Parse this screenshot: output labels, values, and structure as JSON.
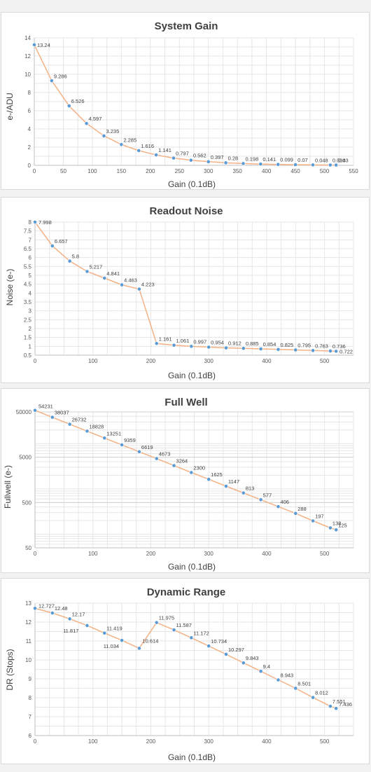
{
  "style": {
    "line_color": "#f4b183",
    "marker_color": "#5b9bd5",
    "grid_color": "#e6e6e6",
    "axis_color": "#bfbfbf"
  },
  "chart_data": [
    {
      "type": "line",
      "title": "System Gain",
      "xlabel": "Gain (0.1dB)",
      "ylabel": "e-/ADU",
      "xlim": [
        0,
        550
      ],
      "ylim": [
        0,
        14
      ],
      "xticks": [
        0,
        50,
        100,
        150,
        200,
        250,
        300,
        350,
        400,
        450,
        500,
        550
      ],
      "yticks": [
        0,
        2,
        4,
        6,
        8,
        10,
        12,
        14
      ],
      "yscale": "linear",
      "grid": true,
      "x": [
        0,
        30,
        60,
        90,
        120,
        150,
        180,
        210,
        240,
        270,
        300,
        330,
        360,
        390,
        420,
        450,
        480,
        510,
        520
      ],
      "values": [
        13.24,
        9.286,
        6.526,
        4.597,
        3.235,
        2.285,
        1.616,
        1.141,
        0.797,
        0.562,
        0.397,
        0.28,
        0.198,
        0.141,
        0.099,
        0.07,
        0.048,
        0.034,
        0.03
      ],
      "labels": [
        "13.24",
        "9.286",
        "6.526",
        "4.597",
        "3.235",
        "2.285",
        "1.616",
        "1.141",
        "0.797",
        "0.562",
        "0.397",
        "0.28",
        "0.198",
        "0.141",
        "0.099",
        "0.07",
        "0.048",
        "0.034",
        "0.03"
      ]
    },
    {
      "type": "line",
      "title": "Readout Noise",
      "xlabel": "Gain (0.1dB)",
      "ylabel": "Noise (e-)",
      "xlim": [
        0,
        550
      ],
      "ylim": [
        0.5,
        8
      ],
      "xticks": [
        0,
        100,
        200,
        300,
        400,
        500
      ],
      "yticks": [
        0.5,
        1,
        1.5,
        2,
        2.5,
        3,
        3.5,
        4,
        4.5,
        5,
        5.5,
        6,
        6.5,
        7,
        7.5,
        8
      ],
      "yscale": "linear",
      "grid": true,
      "x": [
        0,
        30,
        60,
        90,
        120,
        150,
        180,
        210,
        240,
        270,
        300,
        330,
        360,
        390,
        420,
        450,
        480,
        510,
        520
      ],
      "values": [
        7.998,
        6.657,
        5.8,
        5.217,
        4.841,
        4.463,
        4.223,
        1.161,
        1.061,
        0.997,
        0.954,
        0.912,
        0.885,
        0.854,
        0.825,
        0.795,
        0.763,
        0.736,
        0.722
      ],
      "labels": [
        "7.998",
        "6.657",
        "5.8",
        "5.217",
        "4.841",
        "4.463",
        "4.223",
        "1.161",
        "1.061",
        "0.997",
        "0.954",
        "0.912",
        "0.885",
        "0.854",
        "0.825",
        "0.795",
        "0.763",
        "0.736",
        "0.722"
      ]
    },
    {
      "type": "line",
      "title": "Full Well",
      "xlabel": "Gain (0.1dB)",
      "ylabel": "Fullwell (e-)",
      "xlim": [
        0,
        550
      ],
      "ylim": [
        50,
        50000
      ],
      "xticks": [
        0,
        100,
        200,
        300,
        400,
        500
      ],
      "yticks": [
        50000,
        5000,
        500,
        50
      ],
      "ytick_labels": [
        "50000",
        "5000",
        "500",
        "50"
      ],
      "yscale": "log",
      "grid": true,
      "x": [
        0,
        30,
        60,
        90,
        120,
        150,
        180,
        210,
        240,
        270,
        300,
        330,
        360,
        390,
        420,
        450,
        480,
        510,
        520
      ],
      "values": [
        54231,
        38037,
        26732,
        18828,
        13251,
        9359,
        6619,
        4673,
        3264,
        2300,
        1625,
        1147,
        813,
        577,
        406,
        288,
        197,
        138,
        125
      ],
      "labels": [
        "54231",
        "38037",
        "26732",
        "18828",
        "13251",
        "9359",
        "6619",
        "4673",
        "3264",
        "2300",
        "1625",
        "1147",
        "813",
        "577",
        "406",
        "288",
        "197",
        "138",
        "125"
      ]
    },
    {
      "type": "line",
      "title": "Dynamic Range",
      "xlabel": "Gain (0.1dB)",
      "ylabel": "DR (Stops)",
      "xlim": [
        0,
        550
      ],
      "ylim": [
        6,
        13
      ],
      "xticks": [
        0,
        100,
        200,
        300,
        400,
        500
      ],
      "yticks": [
        6,
        7,
        8,
        9,
        10,
        11,
        12,
        13
      ],
      "yscale": "linear",
      "grid": true,
      "x": [
        0,
        30,
        60,
        90,
        120,
        150,
        180,
        210,
        240,
        270,
        300,
        330,
        360,
        390,
        420,
        450,
        480,
        510,
        520
      ],
      "values": [
        12.727,
        12.48,
        12.17,
        11.817,
        11.419,
        11.034,
        10.614,
        11.975,
        11.587,
        11.172,
        10.734,
        10.297,
        9.843,
        9.4,
        8.943,
        8.501,
        8.012,
        7.551,
        7.436
      ],
      "labels": [
        "12.727",
        "12.48",
        "12.17",
        "11.817",
        "11.419",
        "11.034",
        "10.614",
        "11.975",
        "11.587",
        "11.172",
        "10.734",
        "10.297",
        "9.843",
        "9.4",
        "8.943",
        "8.501",
        "8.012",
        "7.551",
        "7.436"
      ]
    }
  ]
}
